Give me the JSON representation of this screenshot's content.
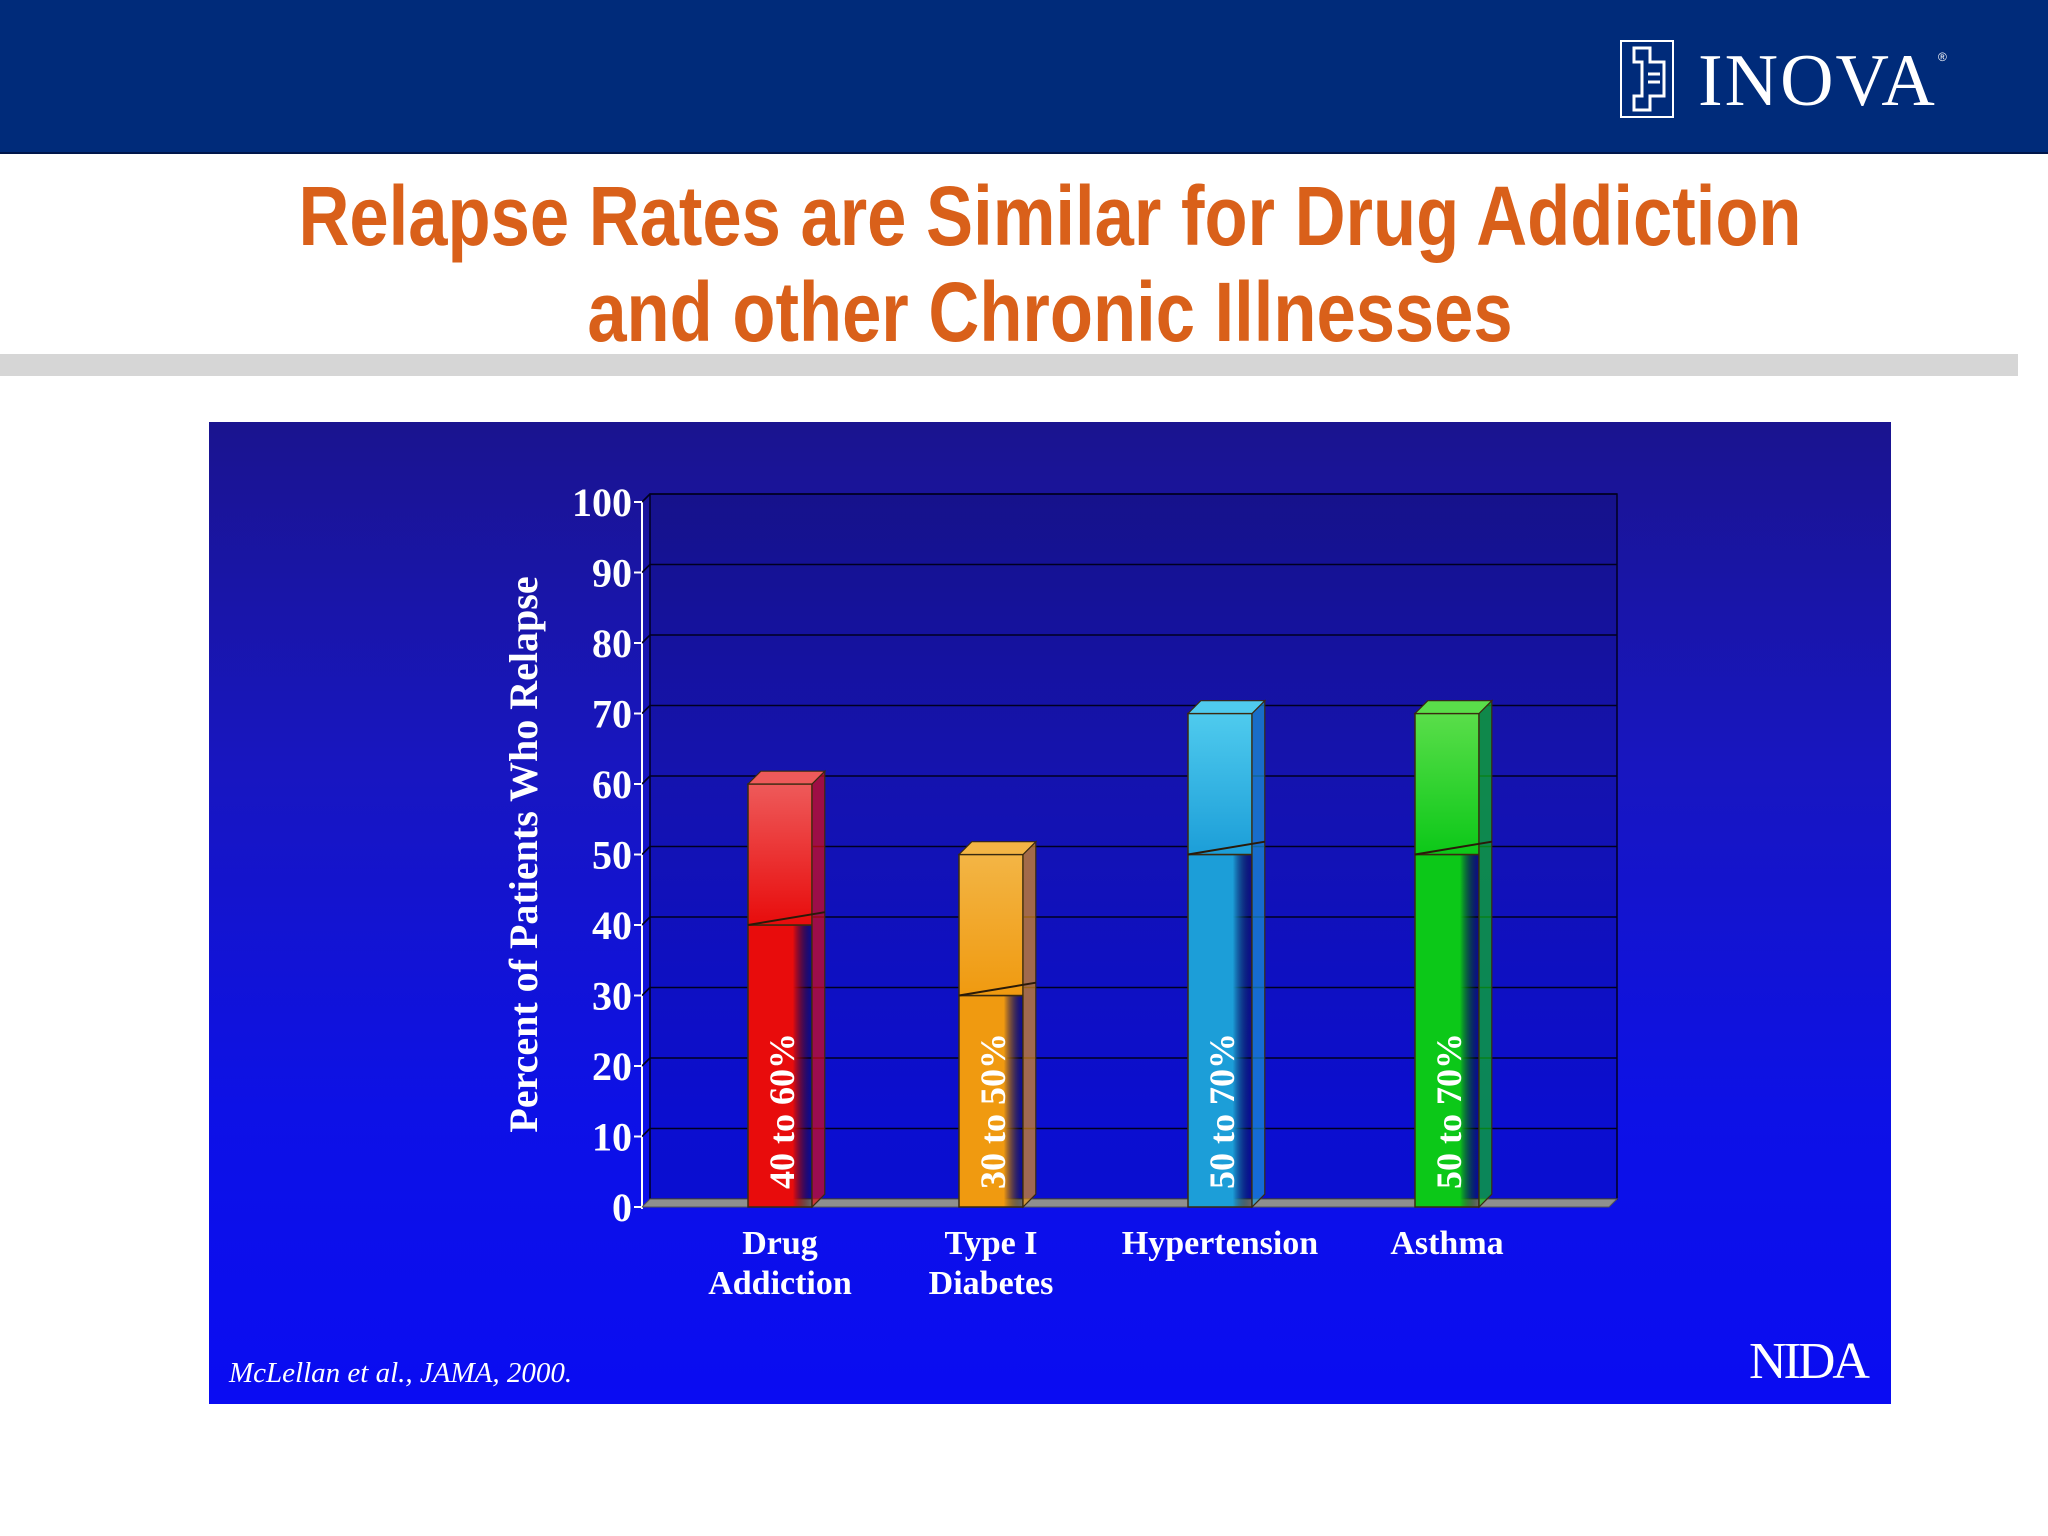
{
  "header": {
    "logo_text": "INOVA",
    "logo_registered": "®",
    "logo_icon": "inova-cross-icon",
    "bar_color": "#002b7a"
  },
  "slide": {
    "title_line1": "Relapse Rates are Similar for Drug Addiction",
    "title_line2": "and other Chronic Illnesses",
    "title_color": "#d9601a"
  },
  "chart_data": {
    "type": "bar",
    "style": "3d-stacked-range",
    "ylabel": "Percent of Patients Who Relapse",
    "xlabel": "",
    "ylim": [
      0,
      100
    ],
    "yticks": [
      "0",
      "10",
      "20",
      "30",
      "40",
      "50",
      "60",
      "70",
      "80",
      "90",
      "100"
    ],
    "grid": true,
    "categories": [
      {
        "lines": [
          "Drug",
          "Addiction"
        ],
        "range": [
          40,
          60
        ],
        "label": "40 to 60%",
        "color_low": "#e80c0c",
        "color_high": "#ee5a5a"
      },
      {
        "lines": [
          "Type I",
          "Diabetes"
        ],
        "range": [
          30,
          50
        ],
        "label": "30 to 50%",
        "color_low": "#f09a10",
        "color_high": "#f3b545"
      },
      {
        "lines": [
          "Hypertension"
        ],
        "range": [
          50,
          70
        ],
        "label": "50 to 70%",
        "color_low": "#1c9ed8",
        "color_high": "#4fcbee"
      },
      {
        "lines": [
          "Asthma"
        ],
        "range": [
          50,
          70
        ],
        "label": "50 to 70%",
        "color_low": "#0cc818",
        "color_high": "#5ade4a"
      }
    ]
  },
  "footer": {
    "source": "McLellan et al., JAMA, 2000.",
    "credit": "NIDA"
  }
}
